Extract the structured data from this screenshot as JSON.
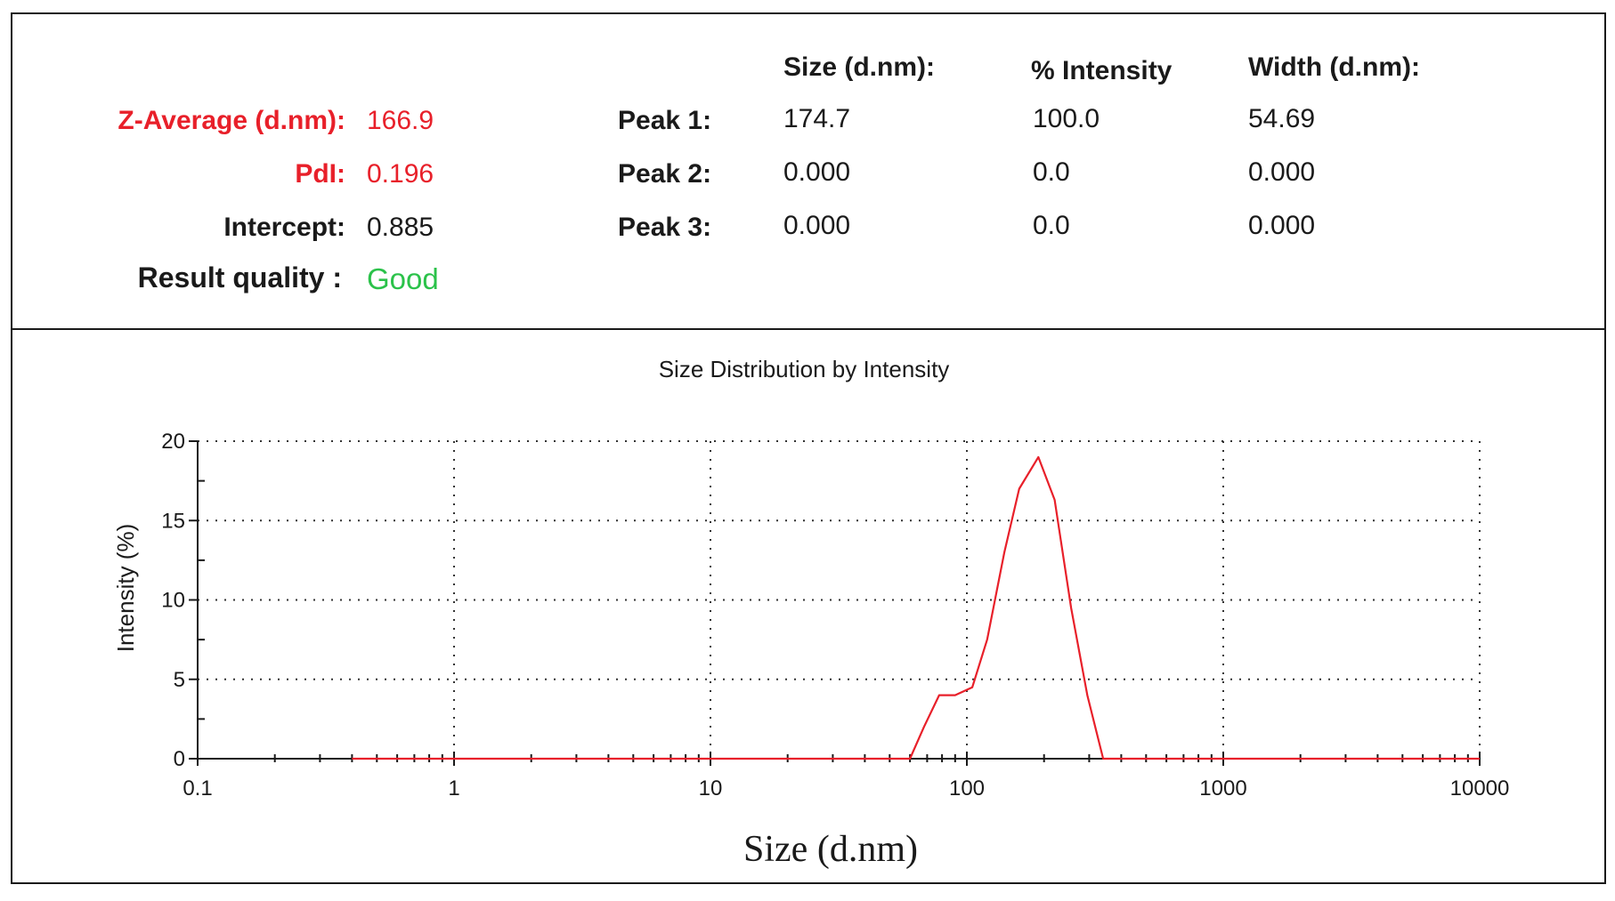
{
  "results": {
    "z_average_label": "Z-Average (d.nm):",
    "z_average_value": "166.9",
    "pdi_label": "PdI:",
    "pdi_value": "0.196",
    "intercept_label": "Intercept:",
    "intercept_value": "0.885",
    "quality_label": "Result quality :",
    "quality_value": "Good",
    "columns": {
      "size": "Size (d.nm):",
      "intensity": "% Intensity",
      "width": "Width (d.nm):"
    },
    "peaks": [
      {
        "label": "Peak 1:",
        "size": "174.7",
        "intensity": "100.0",
        "width": "54.69"
      },
      {
        "label": "Peak 2:",
        "size": "0.000",
        "intensity": "0.0",
        "width": "0.000"
      },
      {
        "label": "Peak 3:",
        "size": "0.000",
        "intensity": "0.0",
        "width": "0.000"
      }
    ],
    "colors": {
      "highlight": "#e8202a",
      "good": "#2bc24a"
    }
  },
  "chart_data": {
    "type": "line",
    "title": "Size Distribution by Intensity",
    "xlabel": "Size (d.nm)",
    "ylabel": "Intensity (%)",
    "x_scale": "log",
    "xlim": [
      0.1,
      10000
    ],
    "ylim": [
      0,
      20
    ],
    "x_ticks": [
      0.1,
      1,
      10,
      100,
      1000,
      10000
    ],
    "x_tick_labels": [
      "0.1",
      "1",
      "10",
      "100",
      "1000",
      "10000"
    ],
    "y_ticks": [
      0,
      5,
      10,
      15,
      20
    ],
    "y_tick_labels": [
      "0",
      "5",
      "10",
      "15",
      "20"
    ],
    "grid": true,
    "series": [
      {
        "color": "#e8202a",
        "x": [
          0.4,
          50,
          60,
          68,
          78,
          90,
          105,
          120,
          140,
          160,
          190,
          220,
          255,
          295,
          340,
          400,
          10000
        ],
        "y": [
          0,
          0,
          0,
          2,
          4,
          4,
          4.5,
          7.5,
          13,
          17,
          19,
          16.3,
          9.5,
          4,
          0,
          0,
          0
        ]
      }
    ]
  }
}
